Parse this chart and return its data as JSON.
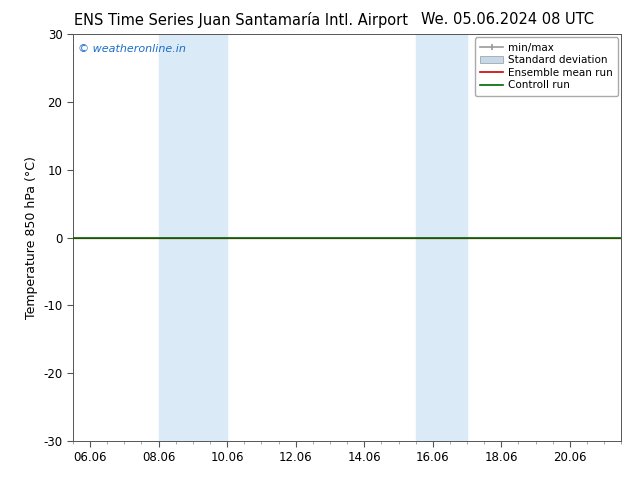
{
  "title_left": "ENS Time Series Juan Santamaría Intl. Airport",
  "title_right": "We. 05.06.2024 08 UTC",
  "ylabel": "Temperature 850 hPa (°C)",
  "ylim": [
    -30,
    30
  ],
  "yticks": [
    -30,
    -20,
    -10,
    0,
    10,
    20,
    30
  ],
  "xtick_labels": [
    "06.06",
    "08.06",
    "10.06",
    "12.06",
    "14.06",
    "16.06",
    "18.06",
    "20.06"
  ],
  "xtick_positions": [
    0,
    2,
    4,
    6,
    8,
    10,
    12,
    14
  ],
  "xlim": [
    -0.5,
    15.5
  ],
  "watermark": "© weatheronline.in",
  "watermark_color": "#1a6dcc",
  "control_run_color": "#006600",
  "ensemble_mean_color": "#cc0000",
  "shaded_bands": [
    {
      "x_start": 2.0,
      "x_end": 4.0
    },
    {
      "x_start": 9.5,
      "x_end": 11.0
    }
  ],
  "shaded_color": "#daeaf6",
  "background_color": "#ffffff",
  "legend_labels": [
    "min/max",
    "Standard deviation",
    "Ensemble mean run",
    "Controll run"
  ],
  "minmax_color": "#999999",
  "std_color": "#c5d9ea",
  "title_fontsize": 10.5,
  "tick_fontsize": 8.5,
  "ylabel_fontsize": 9,
  "watermark_fontsize": 8,
  "legend_fontsize": 7.5
}
